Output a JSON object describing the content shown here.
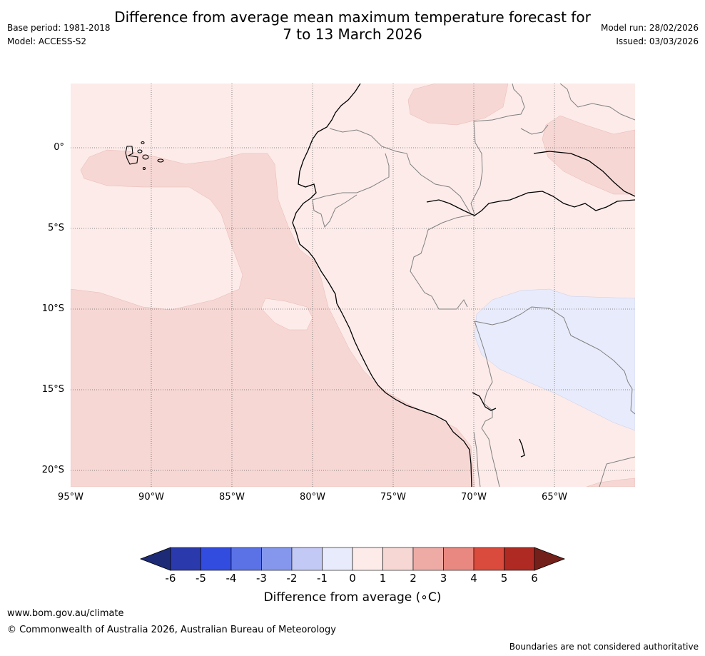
{
  "header": {
    "title_line1": "Difference from average mean maximum temperature forecast for",
    "title_line2": "7 to 13 March 2026",
    "base_period": "Base period: 1981-2018",
    "model": "Model: ACCESS-S2",
    "model_run": "Model run: 28/02/2026",
    "issued": "Issued: 03/03/2026"
  },
  "map": {
    "lat_labels": [
      "0°",
      "5°S",
      "10°S",
      "15°S",
      "20°S"
    ],
    "lon_labels": [
      "95°W",
      "90°W",
      "85°W",
      "80°W",
      "75°W",
      "70°W",
      "65°W"
    ],
    "region_colors": {
      "anomaly_0_1": "#fcebe9",
      "anomaly_1_2": "#f6d7d4",
      "anomaly_m1_0": "#e8ebfb",
      "coastline": "#000000",
      "border": "#808080"
    }
  },
  "colorbar": {
    "ticks": [
      "-6",
      "-5",
      "-4",
      "-3",
      "-2",
      "-1",
      "0",
      "1",
      "2",
      "3",
      "4",
      "5",
      "6"
    ],
    "colors": [
      "#2a3aad",
      "#334ce0",
      "#5a72e6",
      "#8597ec",
      "#c3c9f5",
      "#e8ebfb",
      "#fcebe9",
      "#f6d7d4",
      "#eeaba6",
      "#e88880",
      "#da4a3d",
      "#ae2a22"
    ],
    "under_color": "#1d2a75",
    "over_color": "#74201a",
    "title": "Difference from average (",
    "title_unit": "∘C)"
  },
  "footer": {
    "website": "www.bom.gov.au/climate",
    "copyright": "© Commonwealth of Australia 2026, Australian Bureau of Meteorology",
    "disclaimer": "Boundaries are not considered authoritative"
  }
}
